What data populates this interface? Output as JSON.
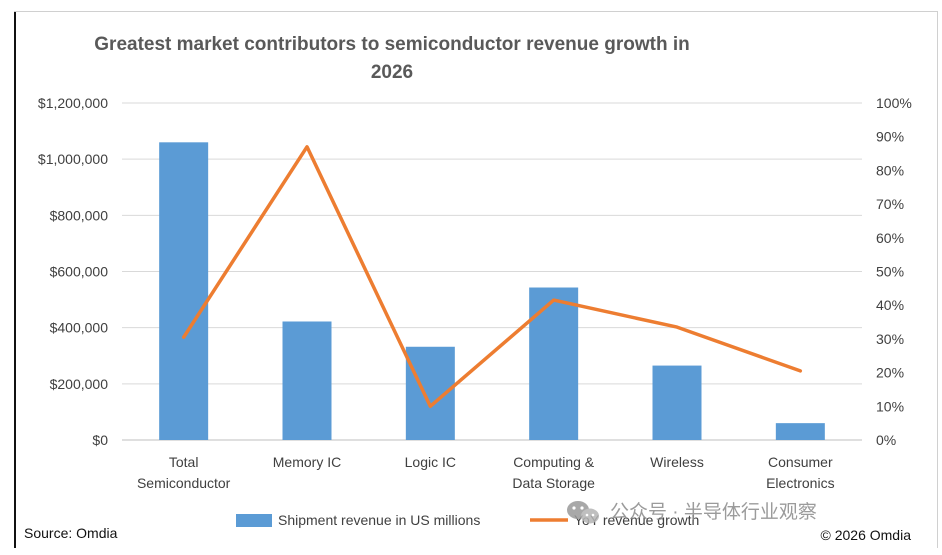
{
  "chart_data": {
    "type": "bar+line",
    "title": "Greatest market contributors to semiconductor revenue growth in 2026",
    "title_lines": [
      "Greatest market contributors to semiconductor revenue growth in",
      "2026"
    ],
    "categories": [
      [
        "Total",
        "Semiconductor"
      ],
      [
        "Memory IC"
      ],
      [
        "Logic IC"
      ],
      [
        "Computing &",
        "Data Storage"
      ],
      [
        "Wireless"
      ],
      [
        "Consumer",
        "Electronics"
      ]
    ],
    "series": [
      {
        "name": "Shipment revenue in US millions",
        "type": "bar",
        "axis": "left",
        "color": "#5b9bd5",
        "values": [
          1060000,
          422000,
          332000,
          543000,
          265000,
          60000
        ]
      },
      {
        "name": "YoY revenue growth",
        "type": "line",
        "axis": "right",
        "color": "#ed7d31",
        "values": [
          30.5,
          87,
          10,
          41.5,
          33.5,
          20.5
        ]
      }
    ],
    "y_left": {
      "min": 0,
      "max": 1200000,
      "ticks": [
        "$0",
        "$200,000",
        "$400,000",
        "$600,000",
        "$800,000",
        "$1,000,000",
        "$1,200,000"
      ]
    },
    "y_right": {
      "min": 0,
      "max": 100,
      "ticks": [
        "0%",
        "10%",
        "20%",
        "30%",
        "40%",
        "50%",
        "60%",
        "70%",
        "80%",
        "90%",
        "100%"
      ]
    },
    "grid": true,
    "legend": "bottom"
  },
  "footer": {
    "source": "Source: Omdia",
    "copyright": "© 2026 Omdia"
  },
  "watermark": {
    "text": "公众号 · 半导体行业观察",
    "icon": "wechat-icon"
  }
}
